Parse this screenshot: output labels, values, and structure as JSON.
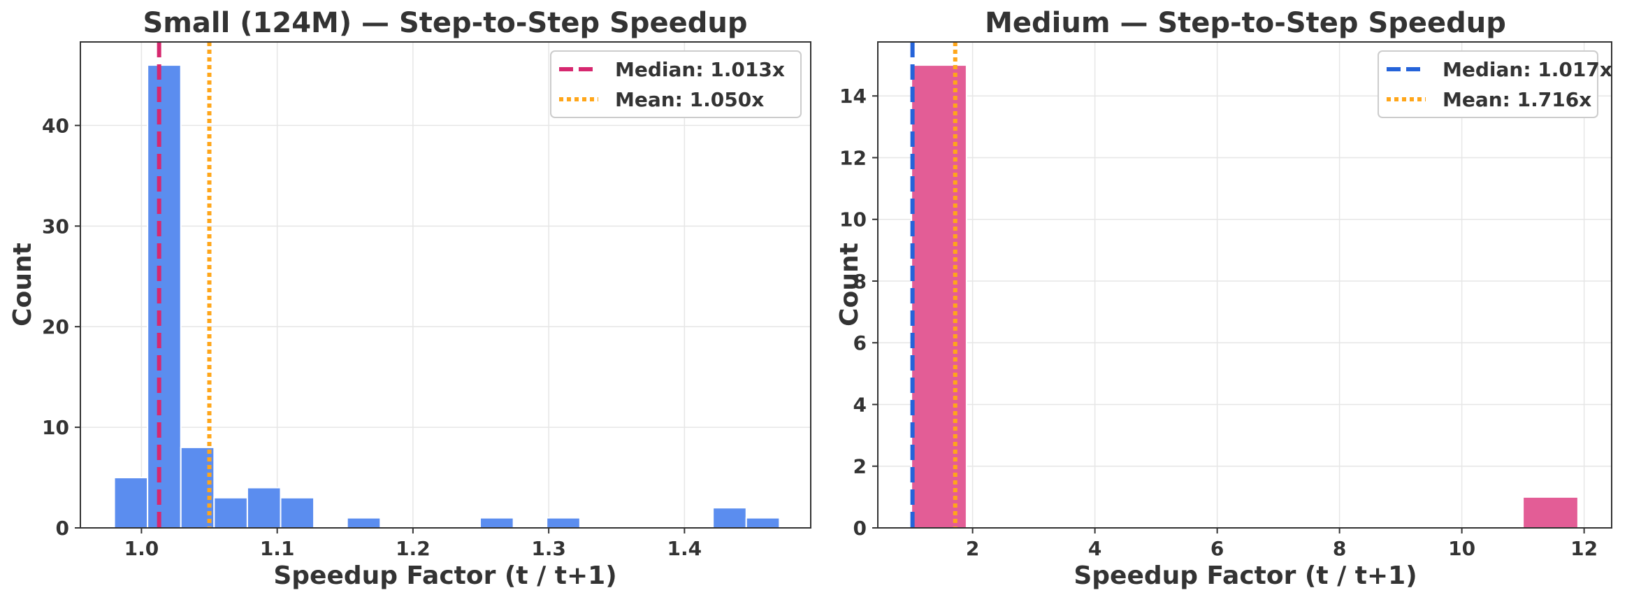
{
  "chart_data": [
    {
      "type": "bar",
      "subtype": "histogram",
      "title": "Small (124M) — Step-to-Step Speedup",
      "xlabel": "Speedup Factor (t / t+1)",
      "ylabel": "Count",
      "xlim": [
        0.955,
        1.493
      ],
      "ylim": [
        0,
        48.3
      ],
      "xticks": [
        1.0,
        1.1,
        1.2,
        1.3,
        1.4
      ],
      "xtick_labels": [
        "1.0",
        "1.1",
        "1.2",
        "1.3",
        "1.4"
      ],
      "yticks": [
        0,
        10,
        20,
        30,
        40
      ],
      "ytick_labels": [
        "0",
        "10",
        "20",
        "30",
        "40"
      ],
      "grid": true,
      "bar_color": "#5b8def",
      "bins": [
        {
          "x0": 0.98,
          "x1": 1.0045,
          "count": 5
        },
        {
          "x0": 1.0045,
          "x1": 1.029,
          "count": 46
        },
        {
          "x0": 1.029,
          "x1": 1.0535,
          "count": 8
        },
        {
          "x0": 1.0535,
          "x1": 1.078,
          "count": 3
        },
        {
          "x0": 1.078,
          "x1": 1.1025,
          "count": 4
        },
        {
          "x0": 1.1025,
          "x1": 1.127,
          "count": 3
        },
        {
          "x0": 1.127,
          "x1": 1.1515,
          "count": 0
        },
        {
          "x0": 1.1515,
          "x1": 1.176,
          "count": 1
        },
        {
          "x0": 1.176,
          "x1": 1.2005,
          "count": 0
        },
        {
          "x0": 1.2005,
          "x1": 1.225,
          "count": 0
        },
        {
          "x0": 1.225,
          "x1": 1.2495,
          "count": 0
        },
        {
          "x0": 1.2495,
          "x1": 1.274,
          "count": 1
        },
        {
          "x0": 1.274,
          "x1": 1.2985,
          "count": 0
        },
        {
          "x0": 1.2985,
          "x1": 1.323,
          "count": 1
        },
        {
          "x0": 1.323,
          "x1": 1.3475,
          "count": 0
        },
        {
          "x0": 1.3475,
          "x1": 1.372,
          "count": 0
        },
        {
          "x0": 1.372,
          "x1": 1.3965,
          "count": 0
        },
        {
          "x0": 1.3965,
          "x1": 1.421,
          "count": 0
        },
        {
          "x0": 1.421,
          "x1": 1.4455,
          "count": 2
        },
        {
          "x0": 1.4455,
          "x1": 1.47,
          "count": 1
        }
      ],
      "reference_lines": [
        {
          "name": "Median: 1.013x",
          "x": 1.013,
          "style": "dashed",
          "color": "#d6286f"
        },
        {
          "name": "Mean: 1.050x",
          "x": 1.05,
          "style": "dotted",
          "color": "#ffa61a"
        }
      ],
      "legend_position": "top-right"
    },
    {
      "type": "bar",
      "subtype": "histogram",
      "title": "Medium — Step-to-Step Speedup",
      "xlabel": "Speedup Factor (t / t+1)",
      "ylabel": "Count",
      "xlim": [
        0.45,
        12.45
      ],
      "ylim": [
        0,
        15.75
      ],
      "xticks": [
        2,
        4,
        6,
        8,
        10,
        12
      ],
      "xtick_labels": [
        "2",
        "4",
        "6",
        "8",
        "10",
        "12"
      ],
      "yticks": [
        0,
        2,
        4,
        6,
        8,
        10,
        12,
        14
      ],
      "ytick_labels": [
        "0",
        "2",
        "4",
        "6",
        "8",
        "10",
        "12",
        "14"
      ],
      "grid": true,
      "bar_color": "#e35d96",
      "bins": [
        {
          "x0": 1.0,
          "x1": 1.9,
          "count": 15
        },
        {
          "x0": 11.0,
          "x1": 11.9,
          "count": 1
        }
      ],
      "reference_lines": [
        {
          "name": "Median: 1.017x",
          "x": 1.017,
          "style": "dashed",
          "color": "#2563d9"
        },
        {
          "name": "Mean: 1.716x",
          "x": 1.716,
          "style": "dotted",
          "color": "#ffa61a"
        }
      ],
      "legend_position": "top-right"
    }
  ]
}
